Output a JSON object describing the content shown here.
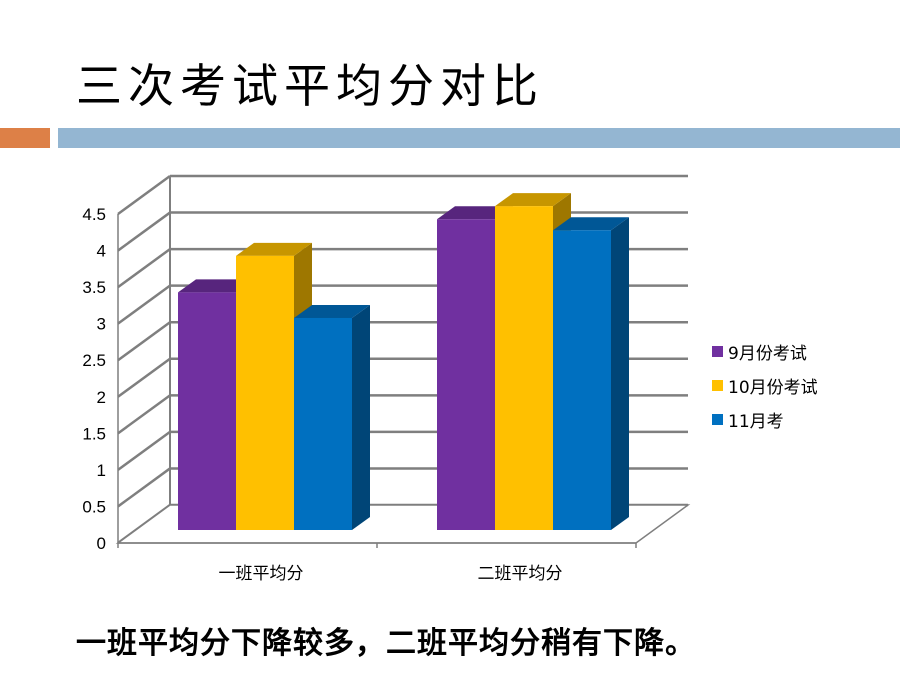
{
  "slide": {
    "title": "三次考试平均分对比",
    "caption": "一班平均分下降较多，二班平均分稍有下降。"
  },
  "colors": {
    "accent_orange": "#dd8047",
    "accent_blue": "#94b6d2"
  },
  "chart_data": {
    "type": "bar",
    "categories": [
      "一班平均分",
      "二班平均分"
    ],
    "series": [
      {
        "name": "9月份考试",
        "values": [
          3.25,
          4.25
        ],
        "color": "#7030a0"
      },
      {
        "name": "10月份考试",
        "values": [
          3.75,
          4.43
        ],
        "color": "#ffc000"
      },
      {
        "name": "11月考",
        "values": [
          2.9,
          4.1
        ],
        "color": "#0070c0"
      }
    ],
    "y_ticks": [
      "0",
      "0.5",
      "1",
      "1.5",
      "2",
      "2.5",
      "3",
      "3.5",
      "4",
      "4.5"
    ],
    "ylim": [
      0,
      4.5
    ],
    "grid": true,
    "legend_position": "right",
    "style": "3d-clustered-column"
  }
}
